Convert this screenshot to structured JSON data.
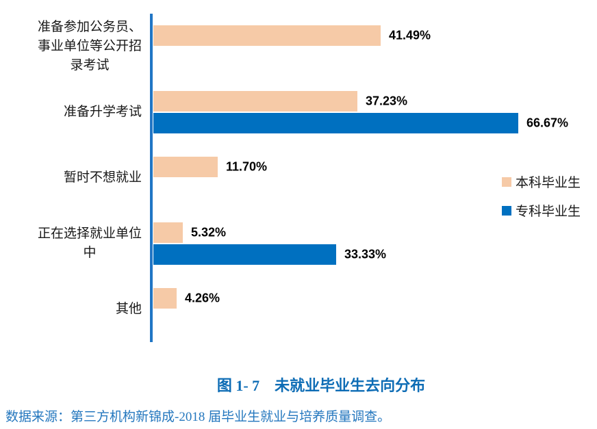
{
  "chart_data": {
    "type": "bar",
    "orientation": "horizontal",
    "title": "图 1- 7　未就业毕业生去向分布",
    "categories": [
      "准备参加公务员、事业单位等公开招录考试",
      "准备升学考试",
      "暂时不想就业",
      "正在选择就业单位中",
      "其他"
    ],
    "category_lines": [
      [
        "准备参加公务员、",
        "事业单位等公开招",
        "录考试"
      ],
      [
        "准备升学考试"
      ],
      [
        "暂时不想就业"
      ],
      [
        "正在选择就业单位",
        "中"
      ],
      [
        "其他"
      ]
    ],
    "series": [
      {
        "name": "本科毕业生",
        "color": "#F6CAA7",
        "values": [
          41.49,
          37.23,
          11.7,
          5.32,
          4.26
        ],
        "labels": [
          "41.49%",
          "37.23%",
          "11.70%",
          "5.32%",
          "4.26%"
        ]
      },
      {
        "name": "专科毕业生",
        "color": "#0070C0",
        "values": [
          null,
          66.67,
          null,
          33.33,
          null
        ],
        "labels": [
          null,
          "66.67%",
          null,
          "33.33%",
          null
        ]
      }
    ],
    "xlabel": "",
    "ylabel": "",
    "xlim": [
      0,
      80
    ],
    "grid": false,
    "x_axis_ticks_visible": false,
    "legend_position": "right-middle",
    "value_labels_visible": true
  },
  "caption": {
    "text": "图 1- 7　未就业毕业生去向分布"
  },
  "source": {
    "text": "数据来源：第三方机构新锦成-2018 届毕业生就业与培养质量调查。"
  },
  "colors": {
    "bar_undergraduate": "#F6CAA7",
    "bar_college": "#0070C0",
    "axis_blue": "#2176C5",
    "caption_blue": "#0D6CB5",
    "source_blue": "#2477BE",
    "value_label": "#000000",
    "background": "#FFFFFF"
  }
}
